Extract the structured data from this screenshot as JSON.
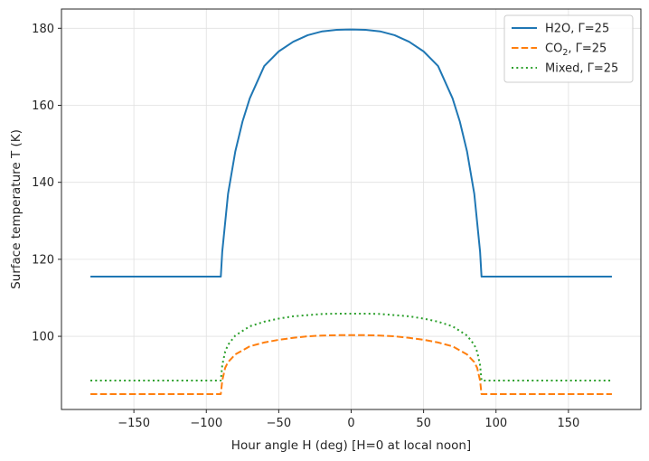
{
  "chart_data": {
    "type": "line",
    "title": "",
    "xlabel": "Hour angle H (deg)  [H=0 at local noon]",
    "ylabel": "Surface temperature T (K)",
    "xlim": [
      -200,
      200
    ],
    "ylim": [
      81,
      185
    ],
    "xticks": [
      -150,
      -100,
      -50,
      0,
      50,
      100,
      150
    ],
    "yticks": [
      100,
      120,
      140,
      160,
      180
    ],
    "grid": true,
    "legend_position": "top-right",
    "series": [
      {
        "name": "H2O, Γ=25",
        "legend_main": "H2O, Γ=25",
        "legend_sub": "",
        "legend_tail": "",
        "color": "#1f77b4",
        "style": "solid",
        "night_value": 115.5,
        "noon_value": 179.7,
        "x": [
          -180,
          -90,
          -89,
          -85,
          -80,
          -75,
          -70,
          -60,
          -50,
          -40,
          -30,
          -20,
          -10,
          0,
          10,
          20,
          30,
          40,
          50,
          60,
          70,
          75,
          80,
          85,
          89,
          90,
          180
        ],
        "y": [
          115.5,
          115.5,
          122.0,
          137.0,
          148.0,
          155.8,
          161.8,
          170.2,
          174.0,
          176.5,
          178.2,
          179.2,
          179.6,
          179.7,
          179.6,
          179.2,
          178.2,
          176.5,
          174.0,
          170.2,
          161.8,
          155.8,
          148.0,
          137.0,
          122.0,
          115.5,
          115.5
        ]
      },
      {
        "name": "CO2, Γ=25",
        "legend_main": "CO",
        "legend_sub": "2",
        "legend_tail": ", Γ=25",
        "color": "#ff7f0e",
        "style": "dashed",
        "night_value": 85.0,
        "noon_value": 100.3,
        "x": [
          -180,
          -90,
          -89,
          -87,
          -85,
          -80,
          -70,
          -60,
          -50,
          -40,
          -30,
          -20,
          -10,
          0,
          10,
          20,
          30,
          40,
          50,
          60,
          70,
          80,
          85,
          87,
          89,
          90,
          180
        ],
        "y": [
          85.0,
          85.0,
          88.5,
          91.8,
          93.3,
          95.3,
          97.4,
          98.4,
          99.1,
          99.6,
          100.0,
          100.2,
          100.3,
          100.3,
          100.3,
          100.2,
          100.0,
          99.6,
          99.1,
          98.4,
          97.4,
          95.3,
          93.3,
          91.8,
          88.5,
          85.0,
          85.0
        ]
      },
      {
        "name": "Mixed, Γ=25",
        "legend_main": "Mixed, Γ=25",
        "legend_sub": "",
        "legend_tail": "",
        "color": "#2ca02c",
        "style": "dotted",
        "night_value": 88.5,
        "noon_value": 105.9,
        "x": [
          -180,
          -90,
          -89,
          -87,
          -85,
          -80,
          -70,
          -60,
          -50,
          -40,
          -30,
          -20,
          -10,
          0,
          10,
          20,
          30,
          40,
          50,
          60,
          70,
          80,
          85,
          87,
          89,
          90,
          180
        ],
        "y": [
          88.5,
          88.5,
          92.5,
          96.0,
          97.8,
          100.2,
          102.6,
          103.8,
          104.6,
          105.2,
          105.5,
          105.8,
          105.9,
          105.9,
          105.9,
          105.8,
          105.5,
          105.2,
          104.6,
          103.8,
          102.6,
          100.2,
          97.8,
          96.0,
          92.5,
          88.5,
          88.5
        ]
      }
    ]
  }
}
